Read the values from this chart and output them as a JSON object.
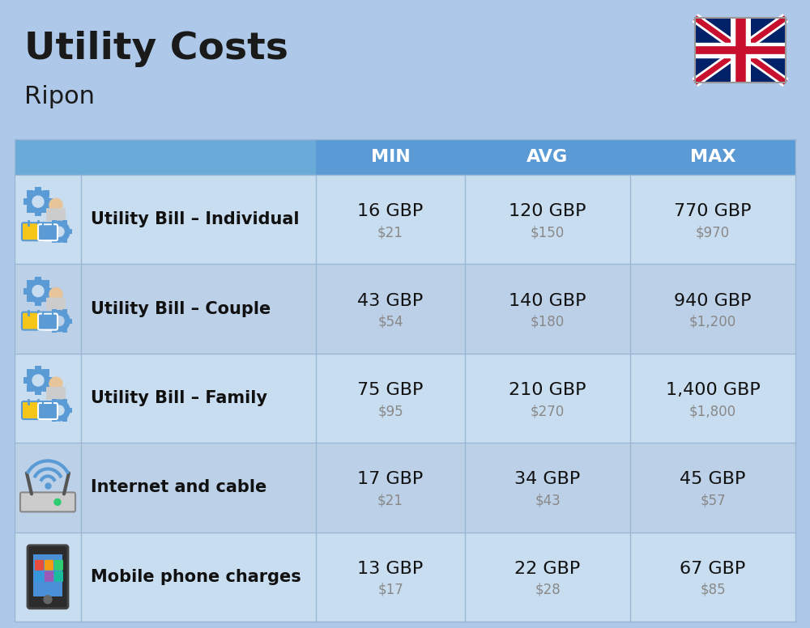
{
  "title": "Utility Costs",
  "subtitle": "Ripon",
  "background_color": "#adc8e8",
  "header_color": "#5b9bd5",
  "header_text_color": "#ffffff",
  "row_color_light": "#c9ddf0",
  "row_color_dark": "#bcd0e8",
  "divider_color": "#9ab8d4",
  "col_headers": [
    "MIN",
    "AVG",
    "MAX"
  ],
  "rows": [
    {
      "label": "Utility Bill – Individual",
      "min_gbp": "16 GBP",
      "min_usd": "$21",
      "avg_gbp": "120 GBP",
      "avg_usd": "$150",
      "max_gbp": "770 GBP",
      "max_usd": "$970"
    },
    {
      "label": "Utility Bill – Couple",
      "min_gbp": "43 GBP",
      "min_usd": "$54",
      "avg_gbp": "140 GBP",
      "avg_usd": "$180",
      "max_gbp": "940 GBP",
      "max_usd": "$1,200"
    },
    {
      "label": "Utility Bill – Family",
      "min_gbp": "75 GBP",
      "min_usd": "$95",
      "avg_gbp": "210 GBP",
      "avg_usd": "$270",
      "max_gbp": "1,400 GBP",
      "max_usd": "$1,800"
    },
    {
      "label": "Internet and cable",
      "min_gbp": "17 GBP",
      "min_usd": "$21",
      "avg_gbp": "34 GBP",
      "avg_usd": "$43",
      "max_gbp": "45 GBP",
      "max_usd": "$57"
    },
    {
      "label": "Mobile phone charges",
      "min_gbp": "13 GBP",
      "min_usd": "$17",
      "avg_gbp": "22 GBP",
      "avg_usd": "$28",
      "max_gbp": "67 GBP",
      "max_usd": "$85"
    }
  ],
  "title_fontsize": 34,
  "subtitle_fontsize": 22,
  "header_fontsize": 16,
  "label_fontsize": 15,
  "value_fontsize": 16,
  "usd_fontsize": 12
}
